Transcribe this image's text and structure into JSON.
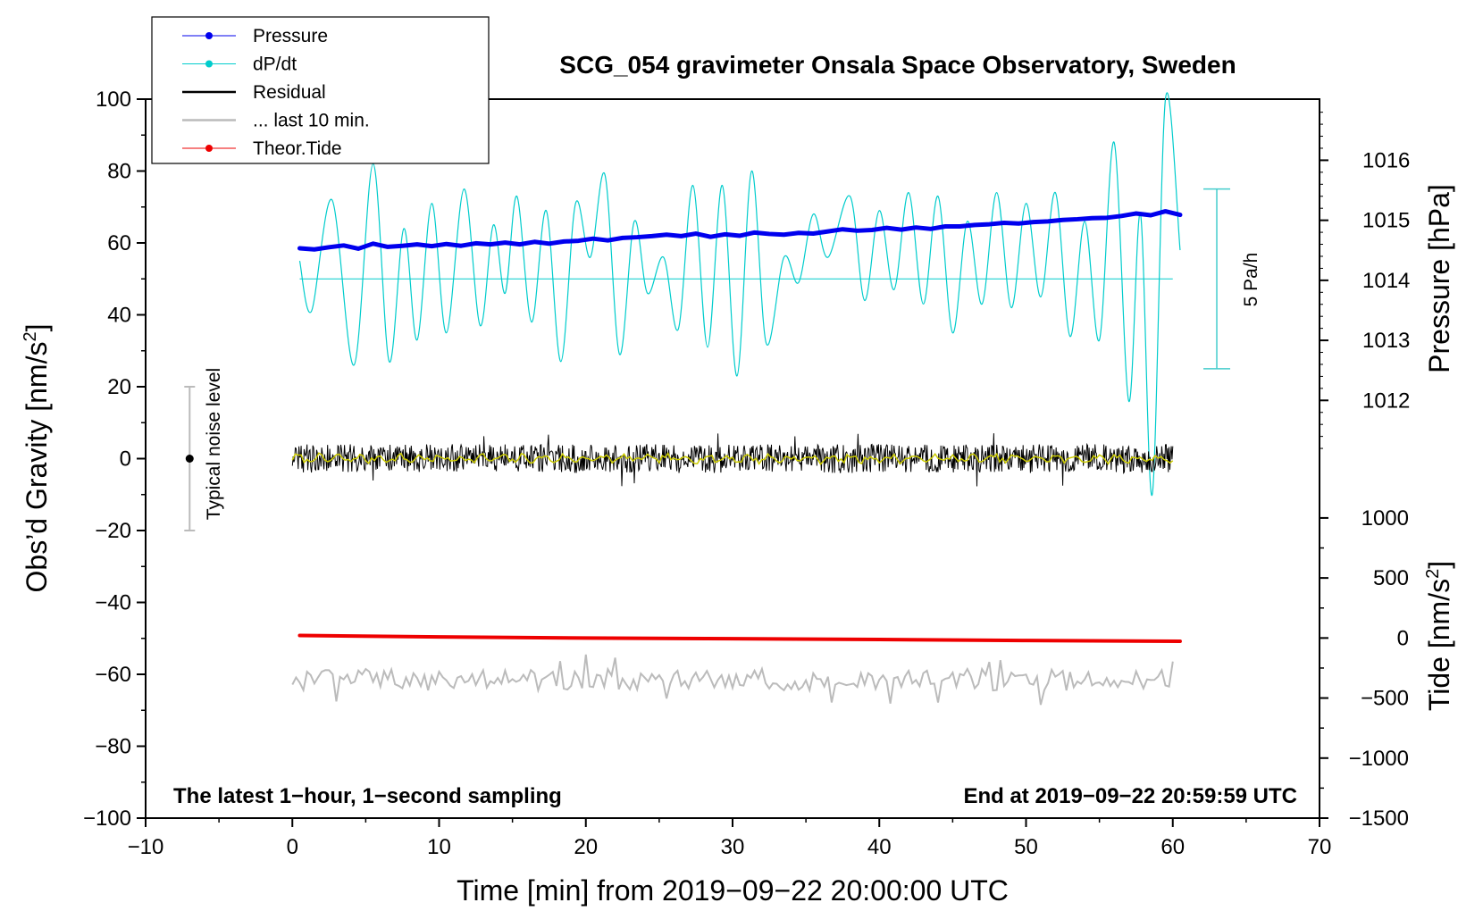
{
  "chart_data": {
    "type": "line",
    "title": "SCG_054 gravimeter Onsala Space Observatory, Sweden",
    "xlabel": "Time [min] from 2019−09−22 20:00:00 UTC",
    "ylabel_main": "Obs’d Gravity [nm/s",
    "ylabel_main_sup": "2",
    "ylabel_main_end": "]",
    "ylabel_pressure": "Pressure [hPa]",
    "ylabel_tide": "Tide [nm/s",
    "ylabel_tide_sup": "2",
    "ylabel_tide_end": "]",
    "xlim": [
      -10,
      70
    ],
    "ylim": [
      -100,
      100
    ],
    "x_ticks": [
      -10,
      0,
      10,
      20,
      30,
      40,
      50,
      60,
      70
    ],
    "x_tick_labels": [
      "−10",
      "0",
      "10",
      "20",
      "30",
      "40",
      "50",
      "60",
      "70"
    ],
    "y_ticks": [
      100,
      80,
      60,
      40,
      20,
      0,
      -20,
      -40,
      -60,
      -80,
      -100
    ],
    "y_tick_labels": [
      "100",
      "80",
      "60",
      "40",
      "20",
      "0",
      "−20",
      "−40",
      "−60",
      "−80",
      "−100"
    ],
    "pressure_axis": {
      "ticks": [
        1016,
        1015,
        1014,
        1013,
        1012
      ],
      "tick_labels": [
        "1016",
        "1015",
        "1014",
        "1013",
        "1012"
      ],
      "gravity_at_1016": 83,
      "gravity_per_hpa": 16.7
    },
    "tide_axis": {
      "ticks": [
        1000,
        500,
        0,
        -500,
        -1000,
        -1500
      ],
      "tick_labels": [
        "1000",
        "500",
        "0",
        "−500",
        "−1000",
        "−1500"
      ],
      "gravity_at_1000": -16.5,
      "gravity_per_500": 16.7
    },
    "legend": [
      {
        "label": "Pressure",
        "color": "#0000ee",
        "marker": true
      },
      {
        "label": "dP/dt",
        "color": "#00cccc",
        "marker": true
      },
      {
        "label": "Residual",
        "color": "#000000",
        "marker": false
      },
      {
        "label": "... last 10 min.",
        "color": "#bbbbbb",
        "marker": false
      },
      {
        "label": "Theor.Tide",
        "color": "#ee0000",
        "marker": true
      }
    ],
    "series": [
      {
        "name": "Pressure",
        "color": "#0000ee",
        "x": [
          0.5,
          1.5,
          2.5,
          3.5,
          4.5,
          5.5,
          6.5,
          7.5,
          8.5,
          9.5,
          10.5,
          11.5,
          12.5,
          13.5,
          14.5,
          15.5,
          16.5,
          17.5,
          18.5,
          19.5,
          20.5,
          21.5,
          22.5,
          23.5,
          24.5,
          25.5,
          26.5,
          27.5,
          28.5,
          29.5,
          30.5,
          31.5,
          32.5,
          33.5,
          34.5,
          35.5,
          36.5,
          37.5,
          38.5,
          39.5,
          40.5,
          41.5,
          42.5,
          43.5,
          44.5,
          45.5,
          46.5,
          47.5,
          48.5,
          49.5,
          50.5,
          51.5,
          52.5,
          53.5,
          54.5,
          55.5,
          56.5,
          57.5,
          58.5,
          59.5,
          60.5
        ],
        "values": [
          58.5,
          58.2,
          58.8,
          59.3,
          58.4,
          59.8,
          58.9,
          59.2,
          59.6,
          59.1,
          59.7,
          59.2,
          59.9,
          59.6,
          60.1,
          59.6,
          60.3,
          59.8,
          60.4,
          60.6,
          61.2,
          60.7,
          61.4,
          61.6,
          61.9,
          62.3,
          61.9,
          62.6,
          61.7,
          62.4,
          62.0,
          62.9,
          62.5,
          62.3,
          62.8,
          62.6,
          63.2,
          63.8,
          63.4,
          63.6,
          64.2,
          63.7,
          64.3,
          63.9,
          64.6,
          64.6,
          65.0,
          65.2,
          65.6,
          65.4,
          65.8,
          66.0,
          66.4,
          66.6,
          66.9,
          67.0,
          67.5,
          68.2,
          67.7,
          68.8,
          67.8
        ]
      },
      {
        "name": "dP/dt",
        "color": "#00cccc",
        "baseline": 50,
        "x": [
          0.5,
          1.3,
          2.7,
          4.2,
          5.5,
          6.6,
          7.6,
          8.5,
          9.5,
          10.5,
          11.7,
          12.8,
          13.7,
          14.5,
          15.3,
          16.3,
          17.3,
          18.3,
          19.3,
          20.3,
          21.3,
          22.3,
          23.3,
          24.2,
          25.3,
          26.3,
          27.3,
          28.3,
          29.3,
          30.3,
          31.3,
          32.3,
          33.5,
          34.5,
          35.5,
          36.5,
          38.0,
          39.0,
          40.0,
          41.0,
          42.0,
          43.0,
          44.0,
          45.0,
          46.0,
          47.0,
          48.0,
          49.0,
          50.0,
          51.0,
          52.0,
          53.0,
          54.0,
          55.0,
          56.0,
          57.0,
          57.8,
          58.6,
          59.5,
          60.5
        ],
        "values": [
          55,
          41,
          72,
          26,
          82,
          27,
          64,
          33,
          71,
          35,
          75,
          37,
          65,
          46,
          73,
          38,
          69,
          27,
          71,
          56,
          79,
          29,
          66,
          46,
          56,
          36,
          76,
          31,
          76,
          23,
          80,
          32,
          56,
          49,
          68,
          56,
          73,
          44,
          69,
          47,
          74,
          43,
          73,
          35,
          66,
          43,
          74,
          42,
          71,
          45,
          74,
          34,
          66,
          33,
          88,
          16,
          68,
          -10,
          100,
          58
        ]
      },
      {
        "name": "Theor.Tide",
        "color": "#ee0000",
        "x": [
          0.5,
          10,
          20,
          30,
          40,
          50,
          60.5
        ],
        "values": [
          -49.2,
          -49.6,
          -49.9,
          -50.1,
          -50.3,
          -50.6,
          -50.8
        ]
      },
      {
        "name": "Residual",
        "color": "#000000",
        "x_start": 0,
        "x_end": 60,
        "center": 0,
        "typical_amplitude": 4,
        "max_excursion": 8.5
      },
      {
        "name": "... last 10 min.",
        "color": "#bbbbbb",
        "x_start": 0,
        "x_end": 60,
        "center": -61.5,
        "typical_amplitude": 3,
        "max_excursion": 7
      }
    ],
    "annotations": {
      "noise_label": "Typical noise level",
      "noise_x": -7,
      "noise_center": 0,
      "noise_range": [
        -20,
        20
      ],
      "rate_label": "5 Pa/h",
      "rate_x": 63,
      "rate_range": [
        25,
        75
      ],
      "footer_left": "The latest 1−hour, 1−second sampling",
      "footer_right": "End at 2019−09−22 20:59:59 UTC"
    }
  }
}
